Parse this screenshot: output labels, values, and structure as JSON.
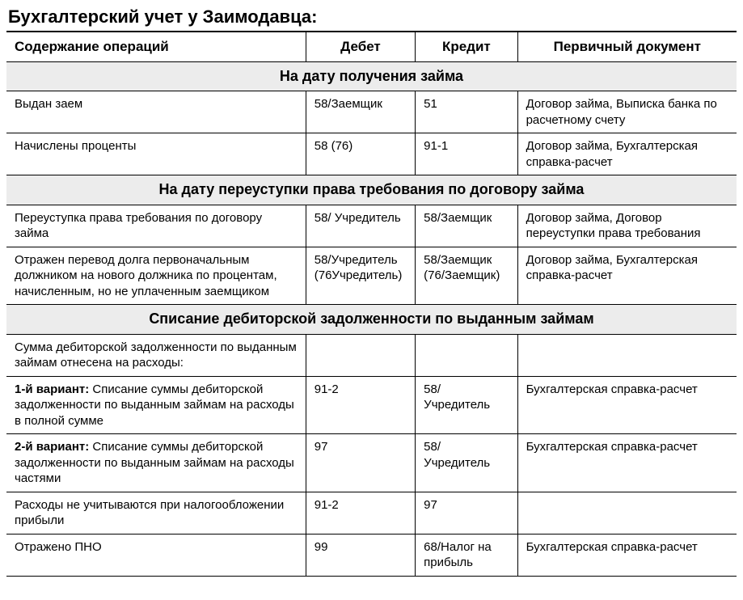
{
  "title": "Бухгалтерский учет у Заимодавца:",
  "table": {
    "columns": [
      "Содержание операций",
      "Дебет",
      "Кредит",
      "Первичный документ"
    ],
    "col_widths_pct": [
      41,
      15,
      14,
      30
    ],
    "header_fontsize": 17,
    "section_fontsize": 18,
    "body_fontsize": 15,
    "title_fontsize": 22,
    "section_bg": "#ececec",
    "border_color": "#000000",
    "text_color": "#000000",
    "background_color": "#ffffff",
    "rows": [
      {
        "type": "section",
        "label": "На дату получения займа"
      },
      {
        "type": "data",
        "cells": [
          "Выдан заем",
          "58/Заемщик",
          "51",
          "Договор займа, Выписка банка по расчетному счету"
        ]
      },
      {
        "type": "data",
        "cells": [
          "Начислены проценты",
          "58 (76)",
          "91-1",
          "Договор займа, Бухгалтерская справка-расчет"
        ]
      },
      {
        "type": "section",
        "label": "На дату переуступки права требования по договору займа"
      },
      {
        "type": "data",
        "cells": [
          "Переуступка права требования по договору займа",
          "58/ Учредитель",
          "58/Заемщик",
          "Договор займа, Договор переуступки права требования"
        ]
      },
      {
        "type": "data",
        "cells": [
          "Отражен перевод долга первоначальным должником на нового должника по процентам, начисленным, но не уплаченным заемщиком",
          "58/Учредитель (76Учредитель)",
          "58/Заемщик (76/Заемщик)",
          "Договор займа, Бухгалтерская справка-расчет"
        ]
      },
      {
        "type": "section",
        "label": "Списание дебиторской задолженности по выданным займам"
      },
      {
        "type": "data",
        "cells": [
          "Сумма дебиторской задолженности по выданным займам отнесена на расходы:",
          "",
          "",
          ""
        ]
      },
      {
        "type": "data",
        "cells": [
          {
            "bold_prefix": "1-й вариант:",
            "rest": " Списание суммы дебиторской задолженности по выданным займам на расходы в полной сумме"
          },
          "91-2",
          "58/ Учредитель",
          "Бухгалтерская справка-расчет"
        ]
      },
      {
        "type": "data",
        "cells": [
          {
            "bold_prefix": "2-й вариант:",
            "rest": " Списание суммы дебиторской задолженности по выданным займам на расходы частями"
          },
          "97",
          "58/ Учредитель",
          "Бухгалтерская справка-расчет"
        ]
      },
      {
        "type": "data",
        "cells": [
          "Расходы не учитываются при налогообложении прибыли",
          "91-2",
          "97",
          ""
        ]
      },
      {
        "type": "data",
        "cells": [
          "Отражено ПНО",
          "99",
          "68/Налог на прибыль",
          "Бухгалтерская справка-расчет"
        ]
      }
    ]
  }
}
